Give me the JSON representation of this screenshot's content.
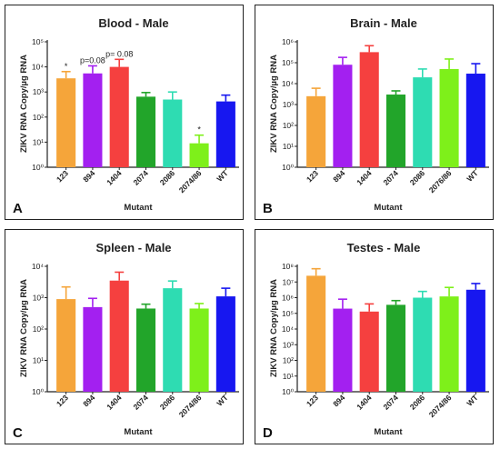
{
  "chart_data": [
    {
      "type": "bar",
      "letter": "A",
      "title": "Blood - Male",
      "xlabel": "Mutant",
      "ylabel": "ZIKV RNA Copy/µg RNA",
      "yscale": "log",
      "ylim": [
        1,
        100000
      ],
      "yticks": [
        1,
        10,
        100,
        1000,
        10000,
        100000
      ],
      "ytick_labels": [
        "10⁰",
        "10¹",
        "10²",
        "10³",
        "10⁴",
        "10⁵"
      ],
      "categories": [
        "123",
        "894",
        "1404",
        "2074",
        "2086",
        "2074/86",
        "WT"
      ],
      "values": [
        3500,
        5500,
        10000,
        650,
        500,
        9,
        420
      ],
      "error": [
        6500,
        11000,
        20000,
        950,
        1000,
        19,
        750
      ],
      "annotations": [
        "*",
        "p=0.08",
        "p= 0.08",
        "",
        "",
        "*",
        ""
      ]
    },
    {
      "type": "bar",
      "letter": "B",
      "title": "Brain - Male",
      "xlabel": "Mutant",
      "ylabel": "ZIKV RNA Copy/µg RNA",
      "yscale": "log",
      "ylim": [
        1,
        1000000
      ],
      "yticks": [
        1,
        10,
        100,
        1000,
        10000,
        100000,
        1000000
      ],
      "ytick_labels": [
        "10⁰",
        "10¹",
        "10²",
        "10³",
        "10⁴",
        "10⁵",
        "10⁶"
      ],
      "categories": [
        "123",
        "894",
        "1404",
        "2074",
        "2086",
        "2076/86",
        "WT"
      ],
      "values": [
        2500,
        80000,
        320000,
        3000,
        20000,
        50000,
        30000
      ],
      "error": [
        6000,
        180000,
        650000,
        4500,
        50000,
        150000,
        90000
      ],
      "annotations": [
        "",
        "",
        "",
        "",
        "",
        "",
        ""
      ]
    },
    {
      "type": "bar",
      "letter": "C",
      "title": "Spleen - Male",
      "xlabel": "Mutant",
      "ylabel": "ZIKV RNA Copy/µg RNA",
      "yscale": "log",
      "ylim": [
        1,
        10000
      ],
      "yticks": [
        1,
        10,
        100,
        1000,
        10000
      ],
      "ytick_labels": [
        "10⁰",
        "10¹",
        "10²",
        "10³",
        "10⁴"
      ],
      "categories": [
        "123",
        "894",
        "1404",
        "2074",
        "2086",
        "2074/86",
        "WT"
      ],
      "values": [
        900,
        500,
        3500,
        450,
        2000,
        450,
        1100
      ],
      "error": [
        2200,
        950,
        6500,
        620,
        3400,
        650,
        2000
      ],
      "annotations": [
        "",
        "",
        "",
        "",
        "",
        "",
        ""
      ]
    },
    {
      "type": "bar",
      "letter": "D",
      "title": "Testes - Male",
      "xlabel": "Mutant",
      "ylabel": "ZIKV RNA Copy/µg RNA",
      "yscale": "log",
      "ylim": [
        1,
        100000000
      ],
      "yticks": [
        1,
        10,
        100,
        1000,
        10000,
        100000,
        1000000,
        10000000,
        100000000
      ],
      "ytick_labels": [
        "10⁰",
        "10¹",
        "10²",
        "10³",
        "10⁴",
        "10⁵",
        "10⁶",
        "10⁷",
        "10⁸"
      ],
      "categories": [
        "123",
        "894",
        "1404",
        "2074",
        "2086",
        "2074/86",
        "WT"
      ],
      "values": [
        25000000,
        200000,
        130000,
        350000,
        1000000,
        1200000,
        3200000
      ],
      "error": [
        70000000,
        800000,
        400000,
        650000,
        2500000,
        4500000,
        8000000
      ],
      "annotations": [
        "",
        "",
        "",
        "",
        "",
        "",
        ""
      ]
    }
  ],
  "colors": [
    "#f5a53a",
    "#a320f0",
    "#f5403f",
    "#22a52a",
    "#2edcb2",
    "#7ef01a",
    "#1717f0"
  ]
}
